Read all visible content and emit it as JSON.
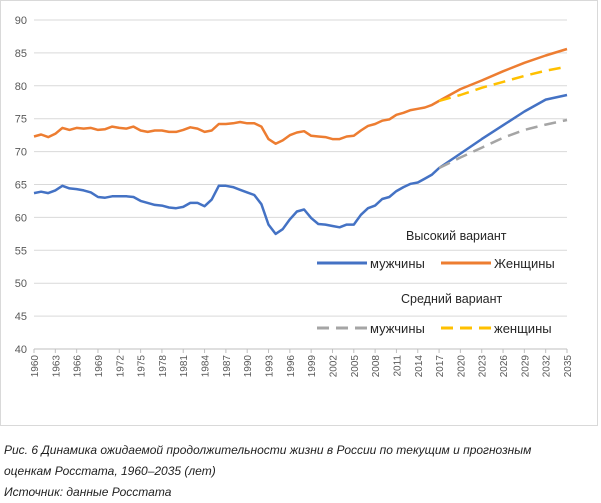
{
  "chart_data": {
    "type": "line",
    "yticks": [
      40,
      45,
      50,
      55,
      60,
      65,
      70,
      75,
      80,
      85,
      90
    ],
    "ylim": [
      40,
      90
    ],
    "xlim": [
      1960,
      2035
    ],
    "xticks": [
      "1960",
      "1963",
      "1966",
      "1969",
      "1972",
      "1975",
      "1978",
      "1981",
      "1984",
      "1987",
      "1990",
      "1993",
      "1996",
      "1999",
      "2002",
      "2005",
      "2008",
      "2011",
      "2014",
      "2017",
      "2020",
      "2023",
      "2026",
      "2029",
      "2032",
      "2035"
    ],
    "grid": "horizontal",
    "legend_position": "right-middle",
    "legend": {
      "high_title": "Высокий вариант",
      "mid_title": "Средний вариант"
    },
    "series": [
      {
        "name": "мужчины",
        "group": "high",
        "color": "#4472c4",
        "dash": "solid",
        "x": [
          1960,
          1961,
          1962,
          1963,
          1964,
          1965,
          1966,
          1967,
          1968,
          1969,
          1970,
          1971,
          1972,
          1973,
          1974,
          1975,
          1976,
          1977,
          1978,
          1979,
          1980,
          1981,
          1982,
          1983,
          1984,
          1985,
          1986,
          1987,
          1988,
          1989,
          1990,
          1991,
          1992,
          1993,
          1994,
          1995,
          1996,
          1997,
          1998,
          1999,
          2000,
          2001,
          2002,
          2003,
          2004,
          2005,
          2006,
          2007,
          2008,
          2009,
          2010,
          2011,
          2012,
          2013,
          2014,
          2015,
          2016,
          2017,
          2020,
          2023,
          2026,
          2029,
          2032,
          2035
        ],
        "y": [
          63.7,
          63.9,
          63.7,
          64.1,
          64.8,
          64.4,
          64.3,
          64.1,
          63.8,
          63.1,
          63.0,
          63.2,
          63.2,
          63.2,
          63.1,
          62.5,
          62.2,
          61.9,
          61.8,
          61.5,
          61.4,
          61.6,
          62.2,
          62.2,
          61.7,
          62.7,
          64.8,
          64.8,
          64.6,
          64.2,
          63.8,
          63.4,
          62.0,
          58.9,
          57.5,
          58.2,
          59.7,
          60.9,
          61.2,
          59.9,
          59.0,
          58.9,
          58.7,
          58.5,
          58.9,
          58.9,
          60.4,
          61.4,
          61.8,
          62.8,
          63.1,
          64.0,
          64.6,
          65.1,
          65.3,
          65.9,
          66.5,
          67.5,
          69.7,
          71.9,
          74.0,
          76.1,
          77.9,
          78.6
        ]
      },
      {
        "name": "Женщины",
        "group": "high",
        "color": "#ed7d31",
        "dash": "solid",
        "x": [
          1960,
          1961,
          1962,
          1963,
          1964,
          1965,
          1966,
          1967,
          1968,
          1969,
          1970,
          1971,
          1972,
          1973,
          1974,
          1975,
          1976,
          1977,
          1978,
          1979,
          1980,
          1981,
          1982,
          1983,
          1984,
          1985,
          1986,
          1987,
          1988,
          1989,
          1990,
          1991,
          1992,
          1993,
          1994,
          1995,
          1996,
          1997,
          1998,
          1999,
          2000,
          2001,
          2002,
          2003,
          2004,
          2005,
          2006,
          2007,
          2008,
          2009,
          2010,
          2011,
          2012,
          2013,
          2014,
          2015,
          2016,
          2017,
          2020,
          2023,
          2026,
          2029,
          2032,
          2035
        ],
        "y": [
          72.3,
          72.6,
          72.2,
          72.7,
          73.6,
          73.3,
          73.6,
          73.5,
          73.6,
          73.3,
          73.4,
          73.8,
          73.6,
          73.5,
          73.8,
          73.2,
          73.0,
          73.2,
          73.2,
          73.0,
          73.0,
          73.3,
          73.7,
          73.5,
          73.0,
          73.2,
          74.2,
          74.2,
          74.3,
          74.5,
          74.3,
          74.3,
          73.8,
          71.9,
          71.2,
          71.7,
          72.5,
          72.9,
          73.1,
          72.4,
          72.3,
          72.2,
          71.9,
          71.9,
          72.3,
          72.4,
          73.2,
          73.9,
          74.2,
          74.7,
          74.9,
          75.6,
          75.9,
          76.3,
          76.5,
          76.7,
          77.1,
          77.7,
          79.5,
          80.8,
          82.2,
          83.5,
          84.6,
          85.6
        ]
      },
      {
        "name": "мужчины",
        "group": "mid",
        "color": "#a5a5a5",
        "dash": "dashed",
        "x": [
          2017,
          2020,
          2023,
          2026,
          2029,
          2032,
          2035
        ],
        "y": [
          67.5,
          69.1,
          70.6,
          72.1,
          73.3,
          74.1,
          74.8
        ]
      },
      {
        "name": "женщины",
        "group": "mid",
        "color": "#ffc000",
        "dash": "dashed",
        "x": [
          2017,
          2020,
          2023,
          2026,
          2029,
          2032,
          2035
        ],
        "y": [
          77.7,
          78.6,
          79.7,
          80.6,
          81.5,
          82.3,
          82.9
        ]
      }
    ]
  },
  "caption": {
    "line1": "Рис. 6 Динамика ожидаемой продолжительности жизни в России по текущим и прогнозным",
    "line2": "оценкам Росстата, 1960–2035 (лет)",
    "line3": "Источник: данные Росстата"
  }
}
